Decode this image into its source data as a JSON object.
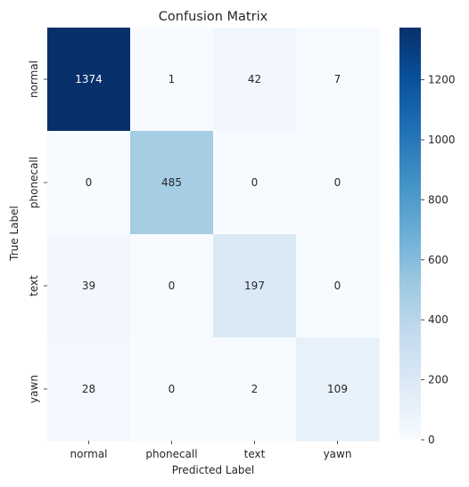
{
  "chart_data": {
    "type": "heatmap",
    "title": "Confusion Matrix",
    "xlabel": "Predicted Label",
    "ylabel": "True Label",
    "x_categories": [
      "normal",
      "phonecall",
      "text",
      "yawn"
    ],
    "y_categories": [
      "normal",
      "phonecall",
      "text",
      "yawn"
    ],
    "values": [
      [
        1374,
        1,
        42,
        7
      ],
      [
        0,
        485,
        0,
        0
      ],
      [
        39,
        0,
        197,
        0
      ],
      [
        28,
        0,
        2,
        109
      ]
    ],
    "colormap": "Blues",
    "colorbar": {
      "range": [
        0,
        1374
      ],
      "ticks": [
        0,
        200,
        400,
        600,
        800,
        1000,
        1200
      ]
    },
    "text_colors": {
      "dark": "#262626",
      "light": "#ffffff"
    }
  }
}
